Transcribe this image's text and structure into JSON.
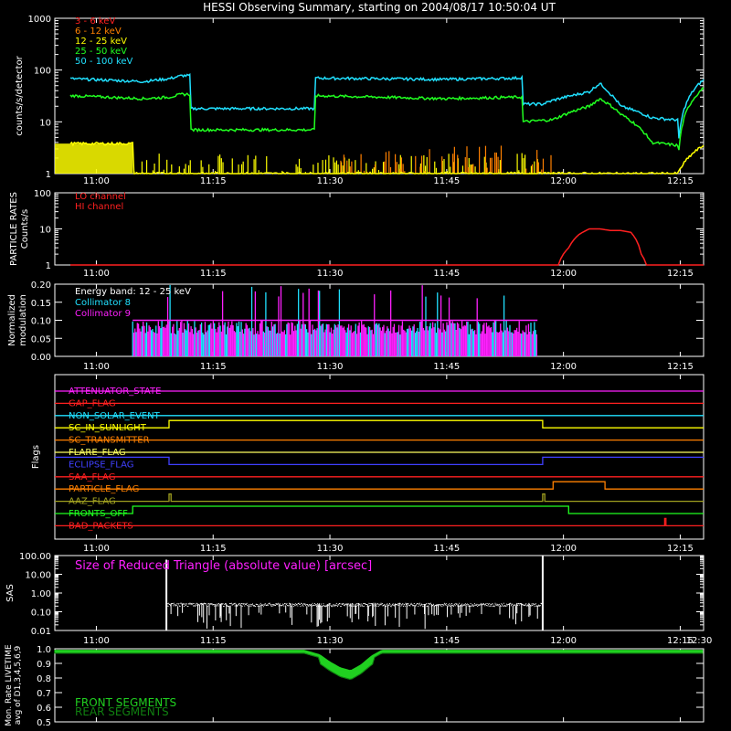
{
  "title": "HESSI Observing Summary, starting on 2004/08/17 10:50:04 UT",
  "colors": {
    "bg": "#000000",
    "axis": "#ffffff",
    "e3_6": "#ff2020",
    "e6_12": "#ff8000",
    "e12_25": "#ffff00",
    "e25_50": "#20ff20",
    "e50_100": "#20e0ff",
    "lo": "#ff2020",
    "hi": "#ff2020",
    "c8": "#20e0ff",
    "c9": "#ff20ff",
    "sas": "#ffffff",
    "sasLabel": "#ff20ff",
    "front": "#20d020",
    "rear": "#108010"
  },
  "chart_data": [
    {
      "type": "line",
      "panel": "count-rates",
      "title": "HESSI Observing Summary, starting on 2004/08/17 10:50:04 UT",
      "ylabel": "counts/s/detector",
      "yscale": "log",
      "ylim": [
        1,
        1000
      ],
      "xlim_min": [
        -6,
        244
      ],
      "yticks": [
        "1",
        "10",
        "100",
        "1000"
      ],
      "xticks": [
        "11:00",
        "11:15",
        "11:30",
        "11:45",
        "12:00",
        "12:15"
      ],
      "xticks_min": [
        10,
        55,
        100,
        145,
        190,
        235
      ],
      "legend": [
        "3 - 6 keV",
        "6 - 12 keV",
        "12 - 25 keV",
        "25 - 50 keV",
        "50 - 100 keV"
      ],
      "series": [
        {
          "name": "50 - 100 keV",
          "color": "#20e0ff",
          "x": [
            0,
            28,
            38,
            43,
            46,
            46.1,
            94,
            94.1,
            144,
            172,
            174,
            174.1,
            182,
            186,
            200,
            204,
            208,
            212,
            224,
            232,
            234,
            234.1,
            244
          ],
          "y": [
            68,
            60,
            68,
            78,
            78,
            18,
            18,
            70,
            66,
            70,
            72,
            22,
            22,
            26,
            38,
            55,
            35,
            20,
            12,
            11,
            11,
            2,
            65
          ]
        },
        {
          "name": "25 - 50 keV",
          "color": "#20ff20",
          "x": [
            0,
            28,
            38,
            43,
            46,
            46.1,
            94,
            94.1,
            144,
            172,
            174,
            174.1,
            186,
            200,
            204,
            212,
            220,
            224,
            234,
            234.1,
            244
          ],
          "y": [
            32,
            28,
            30,
            34,
            34,
            7,
            7,
            32,
            28,
            30,
            30,
            10,
            11,
            20,
            28,
            14,
            7,
            4,
            3.5,
            1,
            45
          ]
        },
        {
          "name": "12 - 25 keV",
          "color": "#ffff00",
          "x": [
            0,
            24,
            24.1,
            190,
            190.1,
            234,
            234.1,
            244
          ],
          "y": [
            3.8,
            3.8,
            1,
            1,
            1,
            1,
            1,
            3.5
          ]
        }
      ],
      "bands": [
        {
          "name": "12 - 25 keV",
          "color": "#ffff00",
          "x0": 24,
          "x1": 188,
          "ylo": 1,
          "yhi": 2.5
        },
        {
          "name": "6 - 12 keV",
          "color": "#ff8000",
          "x0": 100,
          "x1": 186,
          "ylo": 1,
          "yhi": 3.5
        }
      ]
    },
    {
      "type": "line",
      "panel": "particle-rates",
      "ylabel": "PARTICLE RATES Counts/s",
      "yscale": "log",
      "ylim": [
        1,
        100
      ],
      "yticks": [
        "1",
        "10",
        "100"
      ],
      "legend": [
        "LO channel",
        "HI channel"
      ],
      "series": [
        {
          "name": "LO channel",
          "color": "#ff2020",
          "x": [
            0,
            188,
            192,
            196,
            200,
            204,
            208,
            212,
            216,
            218,
            220,
            222,
            244
          ],
          "y": [
            1,
            1,
            3,
            7,
            10,
            10,
            9,
            9,
            8,
            5,
            2,
            1,
            1
          ]
        }
      ]
    },
    {
      "type": "bar",
      "panel": "modulation",
      "ylabel": "Normalized modulation",
      "ylim": [
        0,
        0.2
      ],
      "yticks": [
        "0.00",
        "0.05",
        "0.10",
        "0.15",
        "0.20"
      ],
      "annotation": "Energy band: 12 - 25 keV",
      "legend": [
        "Collimator 8",
        "Collimator 9"
      ],
      "x_range_min": [
        24,
        180
      ],
      "typical": 0.1,
      "max": 0.2
    },
    {
      "type": "line",
      "panel": "flags",
      "ylabel": "Flags",
      "flags": [
        {
          "name": "ATTENUATOR_STATE",
          "color": "#ff20ff",
          "steps": []
        },
        {
          "name": "GAP_FLAG",
          "color": "#ff2020",
          "steps": []
        },
        {
          "name": "NON_SOLAR_EVENT",
          "color": "#20e0ff",
          "steps": []
        },
        {
          "name": "SC_IN_SUNLIGHT",
          "color": "#ffff00",
          "steps": [
            [
              0,
              0
            ],
            [
              38,
              1
            ],
            [
              182,
              0
            ]
          ]
        },
        {
          "name": "SC_TRANSMITTER",
          "color": "#ff8000",
          "steps": []
        },
        {
          "name": "FLARE_FLAG",
          "color": "#ffff60",
          "steps": []
        },
        {
          "name": "ECLIPSE_FLAG",
          "color": "#4040ff",
          "steps": [
            [
              0,
              1
            ],
            [
              38,
              0
            ],
            [
              182,
              1
            ]
          ]
        },
        {
          "name": "SAA_FLAG",
          "color": "#ff2020",
          "steps": []
        },
        {
          "name": "PARTICLE_FLAG",
          "color": "#ff8000",
          "steps": [
            [
              0,
              0
            ],
            [
              186,
              1
            ],
            [
              206,
              0
            ]
          ]
        },
        {
          "name": "AAZ_FLAG",
          "color": "#a0a020",
          "steps": [
            [
              0,
              0
            ],
            [
              38,
              1
            ],
            [
              38.8,
              0
            ],
            [
              182,
              1
            ],
            [
              182.8,
              0
            ]
          ]
        },
        {
          "name": "FRONTS_OFF",
          "color": "#20ff20",
          "steps": [
            [
              0,
              0
            ],
            [
              24,
              1
            ],
            [
              192,
              0
            ]
          ]
        },
        {
          "name": "BAD_PACKETS",
          "color": "#ff2020",
          "steps": [
            [
              0,
              0
            ],
            [
              229,
              1
            ],
            [
              229.5,
              0
            ]
          ]
        }
      ]
    },
    {
      "type": "area",
      "panel": "sas",
      "ylabel": "SAS",
      "yscale": "log",
      "ylim": [
        0.01,
        100
      ],
      "yticks": [
        "0.01",
        "0.10",
        "1.00",
        "10.00",
        "100.00"
      ],
      "xticks": [
        "11:00",
        "11:15",
        "11:30",
        "11:45",
        "12:00",
        "12:15",
        "12:30"
      ],
      "label": "Size of Reduced Triangle (absolute value) [arcsec]",
      "x_range_min": [
        37,
        182
      ],
      "typical": [
        0.2,
        0.3
      ]
    },
    {
      "type": "area",
      "panel": "livetime",
      "ylabel": "Mon. Rate LIVETIME avg of D1,3,4,5,6,9",
      "ylim": [
        0.5,
        1.0
      ],
      "yticks": [
        "0.5",
        "0.6",
        "0.7",
        "0.8",
        "0.9",
        "1.0"
      ],
      "legend": [
        "FRONT SEGMENTS",
        "REAR SEGMENTS"
      ],
      "series": [
        {
          "name": "FRONT SEGMENTS",
          "color": "#20d020",
          "x": [
            0,
            90,
            96,
            100,
            104,
            108,
            112,
            116,
            120,
            244
          ],
          "y": [
            0.98,
            0.98,
            0.95,
            0.9,
            0.86,
            0.84,
            0.88,
            0.94,
            0.98,
            0.98
          ]
        }
      ]
    }
  ]
}
